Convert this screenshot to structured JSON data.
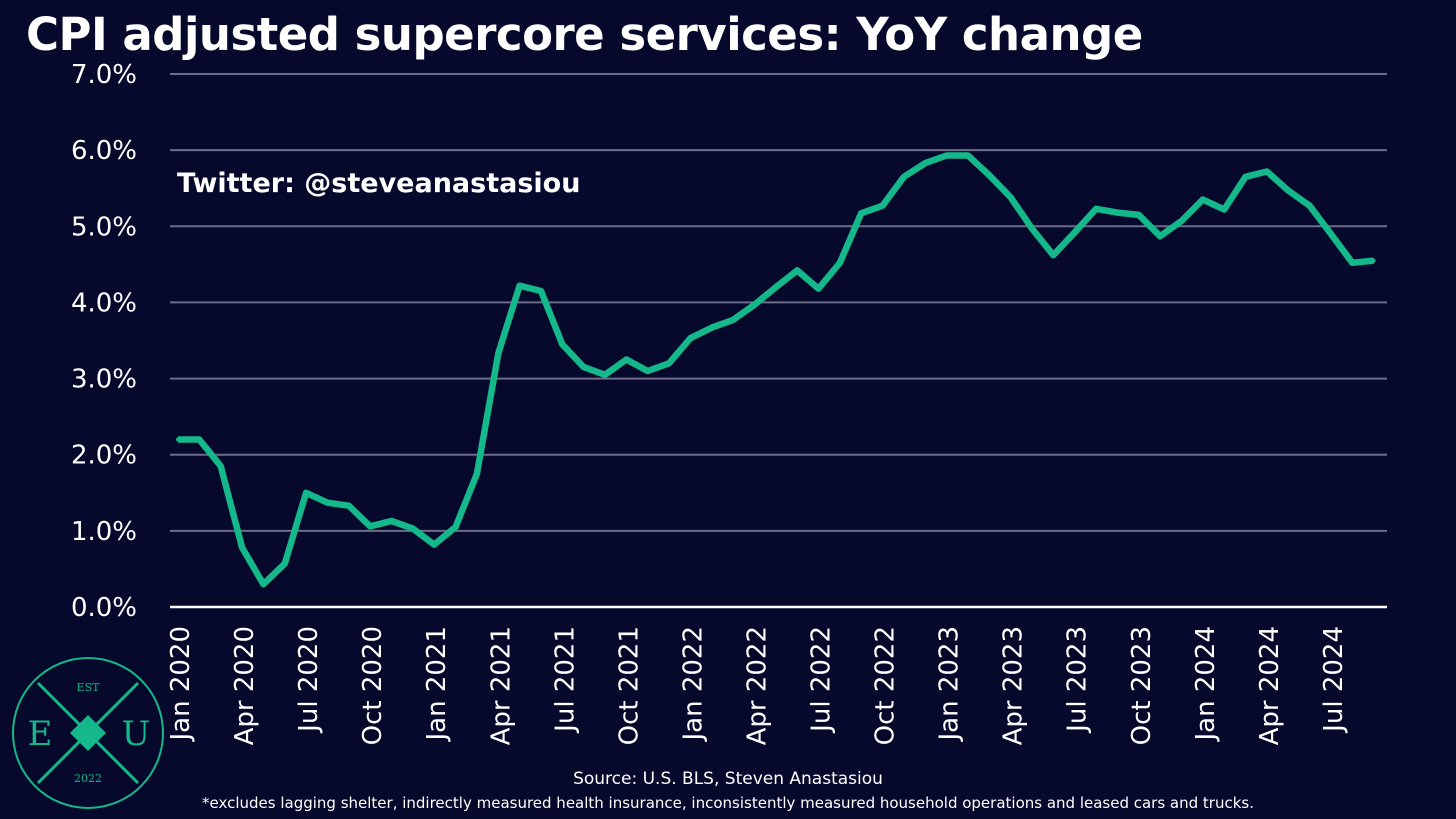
{
  "title": "CPI adjusted supercore services: YoY change",
  "handle": "Twitter: @steveanastasiou",
  "source": "Source: U.S. BLS, Steven Anastasiou",
  "footnote": "*excludes lagging shelter, indirectly measured health insurance, inconsistently measured household operations and leased cars and trucks.",
  "logo": {
    "top_text": "EST",
    "left_letter": "E",
    "right_letter": "U",
    "bottom_text": "2022",
    "center_letter": "X"
  },
  "colors": {
    "background": "#06092b",
    "line": "#14b88a",
    "grid": "#6b6e86",
    "text": "#ffffff",
    "logo": "#14b88a"
  },
  "chart_data": {
    "type": "line",
    "title": "CPI adjusted supercore services: YoY change",
    "xlabel": "",
    "ylabel": "",
    "ylim": [
      0,
      7
    ],
    "y_ticks": [
      "0.0%",
      "1.0%",
      "2.0%",
      "3.0%",
      "4.0%",
      "5.0%",
      "6.0%",
      "7.0%"
    ],
    "grid": true,
    "x_tick_labels": [
      "Jan 2020",
      "Apr 2020",
      "Jul 2020",
      "Oct 2020",
      "Jan 2021",
      "Apr 2021",
      "Jul 2021",
      "Oct 2021",
      "Jan 2022",
      "Apr 2022",
      "Jul 2022",
      "Oct 2022",
      "Jan 2023",
      "Apr 2023",
      "Jul 2023",
      "Oct 2023",
      "Jan 2024",
      "Apr 2024",
      "Jul 2024"
    ],
    "x": [
      "2020-01",
      "2020-02",
      "2020-03",
      "2020-04",
      "2020-05",
      "2020-06",
      "2020-07",
      "2020-08",
      "2020-09",
      "2020-10",
      "2020-11",
      "2020-12",
      "2021-01",
      "2021-02",
      "2021-03",
      "2021-04",
      "2021-05",
      "2021-06",
      "2021-07",
      "2021-08",
      "2021-09",
      "2021-10",
      "2021-11",
      "2021-12",
      "2022-01",
      "2022-02",
      "2022-03",
      "2022-04",
      "2022-05",
      "2022-06",
      "2022-07",
      "2022-08",
      "2022-09",
      "2022-10",
      "2022-11",
      "2022-12",
      "2023-01",
      "2023-02",
      "2023-03",
      "2023-04",
      "2023-05",
      "2023-06",
      "2023-07",
      "2023-08",
      "2023-09",
      "2023-10",
      "2023-11",
      "2023-12",
      "2024-01",
      "2024-02",
      "2024-03",
      "2024-04",
      "2024-05",
      "2024-06",
      "2024-07",
      "2024-08",
      "2024-09"
    ],
    "series": [
      {
        "values": [
          2.2,
          2.2,
          1.85,
          0.78,
          0.3,
          0.57,
          1.5,
          1.37,
          1.33,
          1.06,
          1.13,
          1.03,
          0.82,
          1.05,
          1.75,
          3.33,
          4.22,
          4.15,
          3.45,
          3.15,
          3.05,
          3.25,
          3.1,
          3.2,
          3.53,
          3.67,
          3.77,
          3.97,
          4.2,
          4.42,
          4.18,
          4.52,
          5.17,
          5.27,
          5.65,
          5.83,
          5.93,
          5.93,
          5.67,
          5.38,
          4.97,
          4.62,
          4.92,
          5.23,
          5.18,
          5.15,
          4.87,
          5.07,
          5.35,
          5.22,
          5.65,
          5.72,
          5.47,
          5.27,
          4.9,
          4.52,
          4.55
        ]
      }
    ]
  }
}
